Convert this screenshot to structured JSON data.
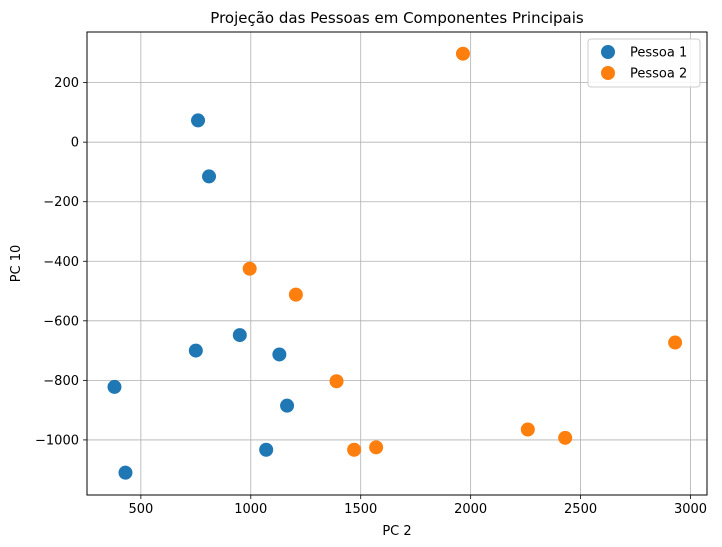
{
  "chart_data": {
    "type": "scatter",
    "title": "Projeção das Pessoas em Componentes Principais",
    "xlabel": "PC 2",
    "ylabel": "PC 10",
    "xlim": [
      255,
      3075
    ],
    "ylim": [
      -1185,
      370
    ],
    "xticks": [
      500,
      1000,
      1500,
      2000,
      2500,
      3000
    ],
    "yticks": [
      -1000,
      -800,
      -600,
      -400,
      -200,
      0,
      200
    ],
    "grid": true,
    "legend_position": "top-right",
    "series": [
      {
        "name": "Pessoa 1",
        "color": "#1f77b4",
        "points": [
          {
            "x": 760,
            "y": 73
          },
          {
            "x": 810,
            "y": -115
          },
          {
            "x": 950,
            "y": -648
          },
          {
            "x": 750,
            "y": -700
          },
          {
            "x": 1130,
            "y": -713
          },
          {
            "x": 380,
            "y": -822
          },
          {
            "x": 1165,
            "y": -885
          },
          {
            "x": 1070,
            "y": -1033
          },
          {
            "x": 430,
            "y": -1110
          }
        ]
      },
      {
        "name": "Pessoa 2",
        "color": "#ff7f0e",
        "points": [
          {
            "x": 1965,
            "y": 297
          },
          {
            "x": 995,
            "y": -425
          },
          {
            "x": 1205,
            "y": -512
          },
          {
            "x": 1390,
            "y": -803
          },
          {
            "x": 2930,
            "y": -673
          },
          {
            "x": 2260,
            "y": -965
          },
          {
            "x": 2430,
            "y": -993
          },
          {
            "x": 1570,
            "y": -1025
          },
          {
            "x": 1470,
            "y": -1033
          }
        ]
      }
    ]
  }
}
